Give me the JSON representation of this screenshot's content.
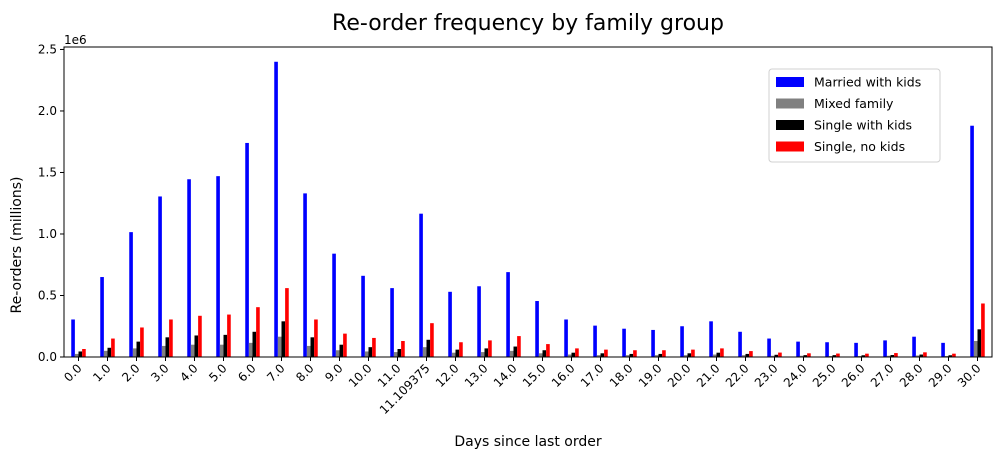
{
  "chart_data": {
    "type": "bar",
    "title": "Re-order frequency by family group",
    "xlabel": "Days since last order",
    "ylabel": "Re-orders (millions)",
    "y_offset_text": "1e6",
    "ylim": [
      0,
      2520000
    ],
    "y_ticks": [
      0,
      500000,
      1000000,
      1500000,
      2000000,
      2500000
    ],
    "y_tick_labels": [
      "0.0",
      "0.5",
      "1.0",
      "1.5",
      "2.0",
      "2.5"
    ],
    "legend_position": "upper-right",
    "categories": [
      "0.0",
      "1.0",
      "2.0",
      "3.0",
      "4.0",
      "5.0",
      "6.0",
      "7.0",
      "8.0",
      "9.0",
      "10.0",
      "11.0",
      "11.109375",
      "12.0",
      "13.0",
      "14.0",
      "15.0",
      "16.0",
      "17.0",
      "18.0",
      "19.0",
      "20.0",
      "21.0",
      "22.0",
      "23.0",
      "24.0",
      "25.0",
      "26.0",
      "27.0",
      "28.0",
      "29.0",
      "30.0"
    ],
    "series": [
      {
        "name": "Married with kids",
        "color": "#0000ff",
        "values": [
          305000,
          650000,
          1015000,
          1305000,
          1445000,
          1470000,
          1740000,
          2400000,
          1330000,
          840000,
          660000,
          560000,
          1165000,
          530000,
          575000,
          690000,
          455000,
          305000,
          255000,
          230000,
          220000,
          250000,
          290000,
          205000,
          150000,
          125000,
          120000,
          115000,
          135000,
          165000,
          115000,
          1880000
        ]
      },
      {
        "name": "Mixed family",
        "color": "#808080",
        "values": [
          25000,
          50000,
          70000,
          90000,
          100000,
          100000,
          115000,
          165000,
          90000,
          55000,
          45000,
          40000,
          80000,
          35000,
          40000,
          50000,
          30000,
          20000,
          15000,
          15000,
          15000,
          15000,
          20000,
          15000,
          10000,
          10000,
          8000,
          8000,
          10000,
          12000,
          8000,
          130000
        ]
      },
      {
        "name": "Single with kids",
        "color": "#000000",
        "values": [
          45000,
          75000,
          125000,
          160000,
          175000,
          180000,
          205000,
          290000,
          160000,
          100000,
          80000,
          65000,
          140000,
          60000,
          70000,
          85000,
          55000,
          35000,
          30000,
          25000,
          25000,
          30000,
          35000,
          25000,
          18000,
          15000,
          15000,
          14000,
          16000,
          20000,
          14000,
          225000
        ]
      },
      {
        "name": "Single, no kids",
        "color": "#ff0000",
        "values": [
          65000,
          150000,
          240000,
          305000,
          335000,
          345000,
          405000,
          560000,
          305000,
          190000,
          155000,
          130000,
          275000,
          120000,
          135000,
          170000,
          105000,
          70000,
          60000,
          55000,
          55000,
          60000,
          70000,
          48000,
          36000,
          30000,
          28000,
          27000,
          32000,
          38000,
          27000,
          435000
        ]
      }
    ]
  }
}
